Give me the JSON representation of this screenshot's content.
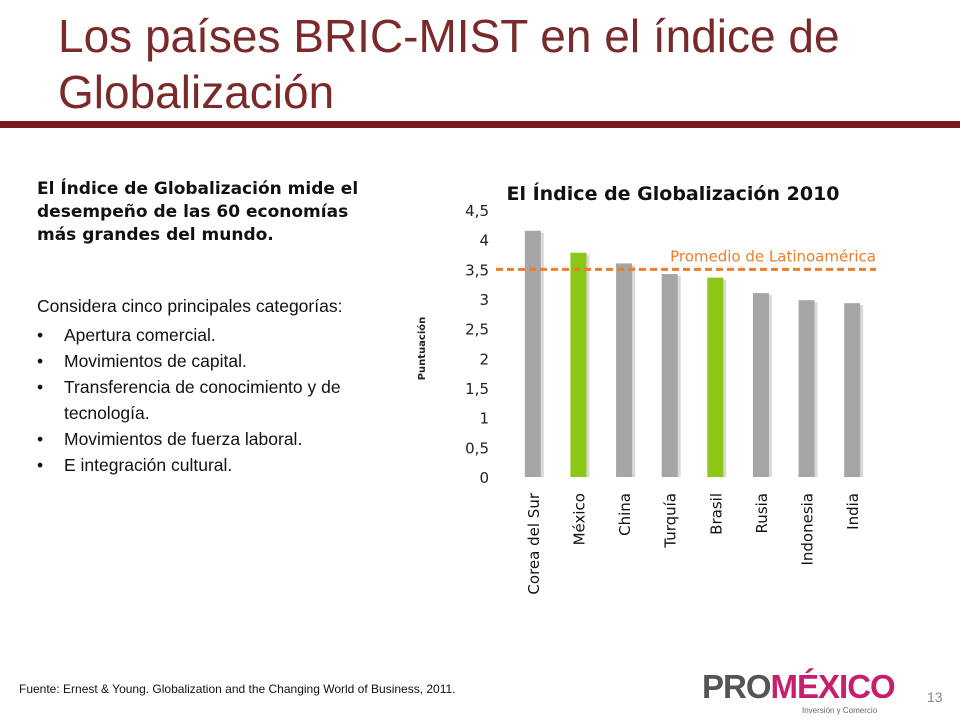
{
  "slide": {
    "title": "Los países BRIC-MIST en el índice de Globalización",
    "lead": "El Índice de Globalización mide el desempeño de las 60 economías más grandes del mundo.",
    "subhead": "Considera cinco principales categorías:",
    "categories": [
      "Apertura comercial.",
      "Movimientos de capital.",
      "Transferencia de conocimiento y de tecnología.",
      "Movimientos de fuerza laboral.",
      "E integración cultural."
    ],
    "footer": "Fuente: Ernest & Young. Globalization and the Changing World of Business, 2011.",
    "page_number": "13",
    "logo": {
      "pro": "PRO",
      "mexico": "MÉXICO",
      "tagline": "Inversión y Comercio"
    }
  },
  "colors": {
    "title": "#7a2a2a",
    "rule": "#7a1a1a",
    "bar_default": "#a6a6a6",
    "bar_highlight": "#8cc617",
    "reference_line": "#ee7d2a"
  },
  "chart_data": {
    "type": "bar",
    "title": "El Índice de Globalización 2010",
    "ylabel": "Puntuación",
    "xlabel": "",
    "categories": [
      "Corea del Sur",
      "México",
      "China",
      "Turquía",
      "Brasil",
      "Rusia",
      "Indonesia",
      "India"
    ],
    "values": [
      4.15,
      3.78,
      3.6,
      3.42,
      3.36,
      3.1,
      2.98,
      2.93
    ],
    "highlighted": [
      "México",
      "Brasil"
    ],
    "ylim": [
      0,
      4.5
    ],
    "yticks": [
      "0",
      "0,5",
      "1",
      "1,5",
      "2",
      "2,5",
      "3",
      "3,5",
      "4",
      "4,5"
    ],
    "reference_line": {
      "label": "Promedio de Latinoamérica",
      "value": 3.5
    },
    "grid": false,
    "legend": "none"
  }
}
